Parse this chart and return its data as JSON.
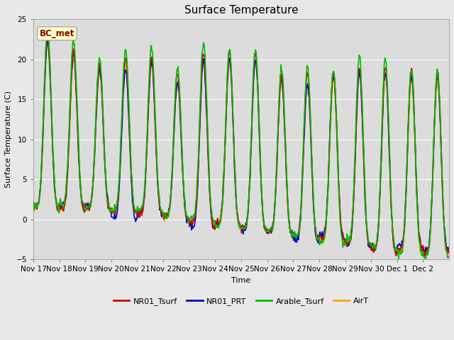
{
  "title": "Surface Temperature",
  "ylabel": "Surface Temperature (C)",
  "xlabel": "Time",
  "annotation": "BC_met",
  "ylim": [
    -5,
    25
  ],
  "fig_bg": "#e8e8e8",
  "plot_bg": "#dcdcdc",
  "series": {
    "NR01_Tsurf": {
      "color": "#cc0000",
      "lw": 1.2
    },
    "NR01_PRT": {
      "color": "#0000cc",
      "lw": 1.2
    },
    "Arable_Tsurf": {
      "color": "#00bb00",
      "lw": 1.2
    },
    "AirT": {
      "color": "#ffaa00",
      "lw": 1.2
    }
  },
  "yticks": [
    -5,
    0,
    5,
    10,
    15,
    20,
    25
  ],
  "xtick_labels": [
    "Nov 17",
    "Nov 18",
    "Nov 19",
    "Nov 20",
    "Nov 21",
    "Nov 22",
    "Nov 23",
    "Nov 24",
    "Nov 25",
    "Nov 26",
    "Nov 27",
    "Nov 28",
    "Nov 29",
    "Nov 30",
    "Dec 1",
    "Dec 2"
  ],
  "legend_items": [
    "NR01_Tsurf",
    "NR01_PRT",
    "Arable_Tsurf",
    "AirT"
  ],
  "legend_colors": [
    "#cc0000",
    "#0000cc",
    "#00bb00",
    "#ffaa00"
  ],
  "annotation_bg": "#ffffcc",
  "annotation_fg": "#880000",
  "annotation_border": "#aaaaaa",
  "grid_color": "#ffffff",
  "grid_lw": 0.8,
  "title_fontsize": 11,
  "label_fontsize": 8,
  "tick_fontsize": 7.5,
  "legend_fontsize": 8
}
